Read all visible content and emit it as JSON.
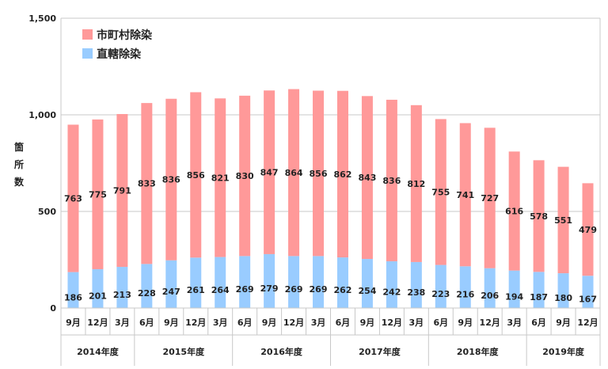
{
  "chart_data": {
    "type": "bar",
    "stacked": true,
    "ylabel": "箇所数",
    "ylim": [
      0,
      1500
    ],
    "yticks": [
      "0",
      "500",
      "1,000",
      "1,500"
    ],
    "grid": true,
    "legend_position": "top-left",
    "categories": [
      "9月",
      "12月",
      "3月",
      "6月",
      "9月",
      "12月",
      "3月",
      "6月",
      "9月",
      "12月",
      "3月",
      "6月",
      "9月",
      "12月",
      "3月",
      "6月",
      "9月",
      "12月",
      "3月",
      "6月",
      "9月",
      "12月"
    ],
    "years": [
      {
        "label": "2014年度",
        "start": 0,
        "end": 2
      },
      {
        "label": "2015年度",
        "start": 3,
        "end": 6
      },
      {
        "label": "2016年度",
        "start": 7,
        "end": 10
      },
      {
        "label": "2017年度",
        "start": 11,
        "end": 14
      },
      {
        "label": "2018年度",
        "start": 15,
        "end": 18
      },
      {
        "label": "2019年度",
        "start": 19,
        "end": 21
      }
    ],
    "series": [
      {
        "name": "直轄除染",
        "color": "#99ccff",
        "values": [
          186,
          201,
          213,
          228,
          247,
          261,
          264,
          269,
          279,
          269,
          269,
          262,
          254,
          242,
          238,
          223,
          216,
          206,
          194,
          187,
          180,
          167
        ]
      },
      {
        "name": "市町村除染",
        "color": "#ff9999",
        "values": [
          763,
          775,
          791,
          833,
          836,
          856,
          821,
          830,
          847,
          864,
          856,
          862,
          843,
          836,
          812,
          755,
          741,
          727,
          616,
          578,
          551,
          479
        ]
      }
    ]
  }
}
